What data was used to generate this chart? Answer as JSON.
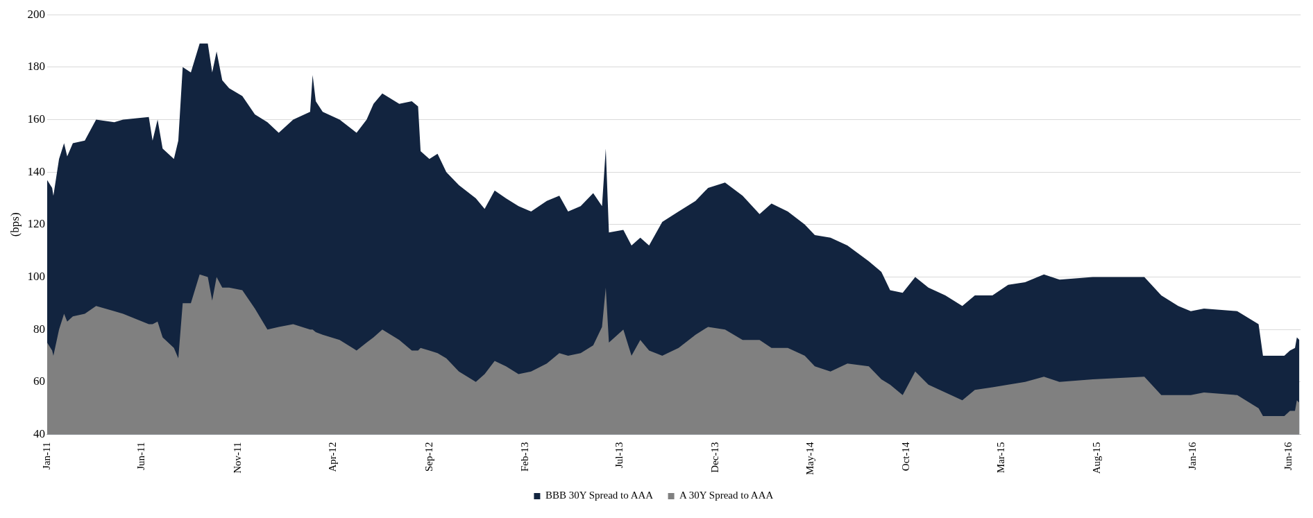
{
  "chart_data": {
    "type": "area",
    "ylabel": "(bps)",
    "xlim": [
      "2011-01-01",
      "2016-06-20"
    ],
    "ylim": [
      40,
      200
    ],
    "yticks": [
      40,
      60,
      80,
      100,
      120,
      140,
      160,
      180,
      200
    ],
    "xticks": [
      {
        "value": "2011-01",
        "label": "Jan-11"
      },
      {
        "value": "2011-06",
        "label": "Jun-11"
      },
      {
        "value": "2011-11",
        "label": "Nov-11"
      },
      {
        "value": "2012-04",
        "label": "Apr-12"
      },
      {
        "value": "2012-09",
        "label": "Sep-12"
      },
      {
        "value": "2013-02",
        "label": "Feb-13"
      },
      {
        "value": "2013-07",
        "label": "Jul-13"
      },
      {
        "value": "2013-12",
        "label": "Dec-13"
      },
      {
        "value": "2014-05",
        "label": "May-14"
      },
      {
        "value": "2014-10",
        "label": "Oct-14"
      },
      {
        "value": "2015-03",
        "label": "Mar-15"
      },
      {
        "value": "2015-08",
        "label": "Aug-15"
      },
      {
        "value": "2016-01",
        "label": "Jan-16"
      },
      {
        "value": "2016-06",
        "label": "Jun-16"
      }
    ],
    "x": [
      "2011-01-01",
      "2011-01-09",
      "2011-01-11",
      "2011-01-20",
      "2011-01-28",
      "2011-02-02",
      "2011-02-11",
      "2011-03-02",
      "2011-03-20",
      "2011-04-18",
      "2011-05-02",
      "2011-06-12",
      "2011-06-18",
      "2011-06-26",
      "2011-07-04",
      "2011-07-22",
      "2011-07-29",
      "2011-08-05",
      "2011-08-18",
      "2011-09-01",
      "2011-09-14",
      "2011-09-21",
      "2011-09-28",
      "2011-10-07",
      "2011-10-18",
      "2011-11-08",
      "2011-11-28",
      "2011-12-18",
      "2012-01-05",
      "2012-01-28",
      "2012-02-24",
      "2012-02-28",
      "2012-03-04",
      "2012-03-15",
      "2012-04-11",
      "2012-05-08",
      "2012-05-24",
      "2012-06-04",
      "2012-06-18",
      "2012-07-15",
      "2012-08-04",
      "2012-08-14",
      "2012-08-18",
      "2012-09-01",
      "2012-09-14",
      "2012-09-28",
      "2012-10-18",
      "2012-11-14",
      "2012-11-28",
      "2012-12-14",
      "2013-01-01",
      "2013-01-21",
      "2013-02-10",
      "2013-03-07",
      "2013-03-27",
      "2013-04-10",
      "2013-04-30",
      "2013-05-20",
      "2013-06-03",
      "2013-06-09",
      "2013-06-14",
      "2013-07-07",
      "2013-07-20",
      "2013-08-03",
      "2013-08-17",
      "2013-09-07",
      "2013-10-03",
      "2013-10-30",
      "2013-11-19",
      "2013-12-16",
      "2014-01-13",
      "2014-02-09",
      "2014-02-28",
      "2014-03-26",
      "2014-04-22",
      "2014-05-08",
      "2014-06-02",
      "2014-06-29",
      "2014-08-02",
      "2014-08-22",
      "2014-09-05",
      "2014-09-25",
      "2014-10-15",
      "2014-11-05",
      "2014-12-02",
      "2014-12-29",
      "2015-01-18",
      "2015-02-15",
      "2015-03-12",
      "2015-04-08",
      "2015-05-08",
      "2015-06-02",
      "2015-07-25",
      "2015-10-15",
      "2015-11-11",
      "2015-12-08",
      "2015-12-28",
      "2016-01-18",
      "2016-03-11",
      "2016-04-14",
      "2016-04-21",
      "2016-05-25",
      "2016-06-03",
      "2016-06-11",
      "2016-06-14",
      "2016-06-18"
    ],
    "legend": "bottom",
    "grid": "y",
    "series": [
      {
        "name": "BBB 30Y Spread to AAA",
        "color": "#12243f",
        "values": [
          137,
          134,
          131,
          145,
          151,
          146,
          151,
          152,
          160,
          159,
          160,
          161,
          152,
          160,
          149,
          145,
          152,
          180,
          178,
          189,
          189,
          178,
          186,
          175,
          172,
          169,
          162,
          159,
          155,
          160,
          163,
          177,
          167,
          163,
          160,
          155,
          160,
          166,
          170,
          166,
          167,
          165,
          148,
          145,
          147,
          140,
          135,
          130,
          126,
          133,
          130,
          127,
          125,
          129,
          131,
          125,
          127,
          132,
          127,
          149,
          117,
          118,
          112,
          115,
          112,
          121,
          125,
          129,
          134,
          136,
          131,
          124,
          128,
          125,
          120,
          116,
          115,
          112,
          106,
          102,
          95,
          94,
          100,
          96,
          93,
          89,
          93,
          93,
          97,
          98,
          101,
          99,
          100,
          100,
          93,
          89,
          87,
          88,
          87,
          82,
          70,
          70,
          72,
          73,
          77,
          76
        ]
      },
      {
        "name": "A 30Y Spread to AAA",
        "color": "#808080",
        "values": [
          75,
          72,
          70,
          80,
          86,
          83,
          85,
          86,
          89,
          87,
          86,
          82,
          82,
          83,
          77,
          73,
          69,
          90,
          90,
          101,
          100,
          91,
          100,
          96,
          96,
          95,
          88,
          80,
          81,
          82,
          80,
          80,
          79,
          78,
          76,
          72,
          75,
          77,
          80,
          76,
          72,
          72,
          73,
          72,
          71,
          69,
          64,
          60,
          63,
          68,
          66,
          63,
          64,
          67,
          71,
          70,
          71,
          74,
          81,
          96,
          75,
          80,
          70,
          76,
          72,
          70,
          73,
          78,
          81,
          80,
          76,
          76,
          73,
          73,
          70,
          66,
          64,
          67,
          66,
          61,
          59,
          55,
          64,
          59,
          56,
          53,
          57,
          58,
          59,
          60,
          62,
          60,
          61,
          62,
          55,
          55,
          55,
          56,
          55,
          50,
          47,
          47,
          49,
          49,
          53,
          52
        ]
      }
    ]
  }
}
